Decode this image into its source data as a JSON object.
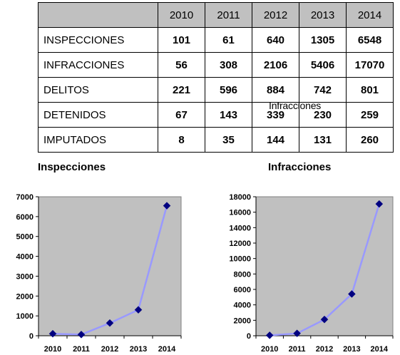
{
  "table": {
    "years": [
      "2010",
      "2011",
      "2012",
      "2013",
      "2014"
    ],
    "rows": [
      {
        "label": "INSPECCIONES",
        "values": [
          "101",
          "61",
          "640",
          "1305",
          "6548"
        ]
      },
      {
        "label": "INFRACCIONES",
        "values": [
          "56",
          "308",
          "2106",
          "5406",
          "17070"
        ]
      },
      {
        "label": "DELITOS",
        "values": [
          "221",
          "596",
          "884",
          "742",
          "801"
        ]
      },
      {
        "label": "DETENIDOS",
        "values": [
          "67",
          "143",
          "339",
          "230",
          "259"
        ]
      },
      {
        "label": "IMPUTADOS",
        "values": [
          "8",
          "35",
          "144",
          "131",
          "260"
        ]
      }
    ],
    "stray_label": "Infracciones"
  },
  "colors": {
    "plot_bg": "#c0c0c0",
    "line": "#9999ff",
    "marker": "#000080",
    "header_bg": "#c0c0c0"
  },
  "chart_data": [
    {
      "type": "line",
      "title": "Inspecciones",
      "x": [
        "2010",
        "2011",
        "2012",
        "2013",
        "2014"
      ],
      "values": [
        101,
        61,
        640,
        1305,
        6548
      ],
      "ylim": [
        0,
        7000
      ],
      "yticks": [
        0,
        1000,
        2000,
        3000,
        4000,
        5000,
        6000,
        7000
      ],
      "grid": false,
      "legend": "none"
    },
    {
      "type": "line",
      "title": "Infracciones",
      "x": [
        "2010",
        "2011",
        "2012",
        "2013",
        "2014"
      ],
      "values": [
        56,
        308,
        2106,
        5406,
        17070
      ],
      "ylim": [
        0,
        18000
      ],
      "yticks": [
        0,
        2000,
        4000,
        6000,
        8000,
        10000,
        12000,
        14000,
        16000,
        18000
      ],
      "grid": false,
      "legend": "none"
    }
  ]
}
